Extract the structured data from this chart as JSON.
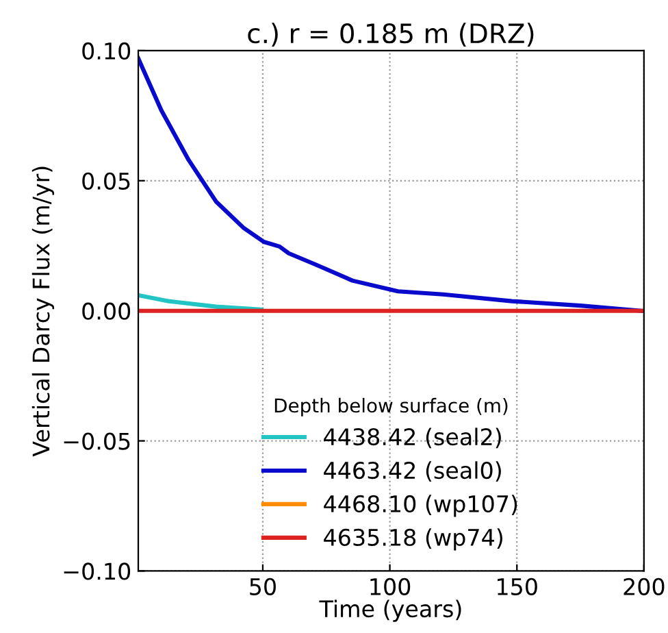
{
  "chart_data": {
    "type": "line",
    "title": "c.) r = 0.185 m (DRZ)",
    "xlabel": "Time (years)",
    "ylabel": "Vertical Darcy Flux (m/yr)",
    "legend_title": "Depth below surface (m)",
    "xlim": [
      1,
      200
    ],
    "xticks": [
      50,
      100,
      150,
      200
    ],
    "ylim": [
      -0.1,
      0.1
    ],
    "yticks": [
      {
        "value": -0.1,
        "label": "−0.10"
      },
      {
        "value": -0.05,
        "label": "−0.05"
      },
      {
        "value": 0.0,
        "label": "0.00"
      },
      {
        "value": 0.05,
        "label": "0.05"
      },
      {
        "value": 0.1,
        "label": "0.10"
      }
    ],
    "grid": true,
    "legend": "bottom",
    "line_style": "solid",
    "marker": "none",
    "series": [
      {
        "name": "4438.42 (seal2)",
        "color": "#22c4c4",
        "x": [
          1,
          13,
          31.6,
          49.5
        ],
        "values": [
          0.006,
          0.0037,
          0.0016,
          0.0005
        ]
      },
      {
        "name": "4463.42 (seal0)",
        "color": "#0a0acc",
        "x": [
          1,
          10.1,
          20.8,
          31.6,
          42.3,
          50.4,
          56.6,
          60.2,
          71,
          85.3,
          103.2,
          121,
          148,
          175,
          199
        ],
        "values": [
          0.097,
          0.077,
          0.058,
          0.042,
          0.032,
          0.0265,
          0.0247,
          0.0221,
          0.0177,
          0.0116,
          0.0075,
          0.0063,
          0.0037,
          0.002,
          0.0
        ]
      },
      {
        "name": "4468.10 (wp107)",
        "color": "#ff8c00"
      },
      {
        "name": "4635.18 (wp74)",
        "color": "#dd2222",
        "x": [
          1,
          200
        ],
        "values": [
          0.0,
          0.0
        ]
      }
    ]
  }
}
